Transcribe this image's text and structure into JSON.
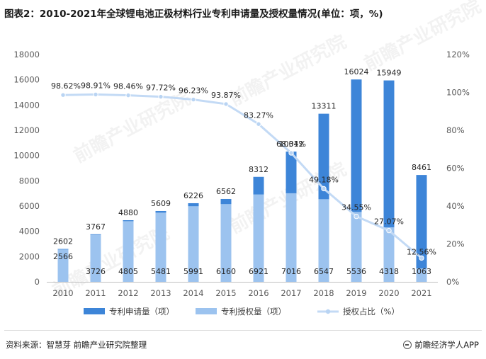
{
  "title": "图表2：2010-2021年全球锂电池正极材料行业专利申请量及授权量情况(单位：项，%)",
  "source": "资料来源：智慧芽 前瞻产业研究院整理",
  "brand": "前瞻经济学人APP",
  "watermark": "前瞻产业研究院",
  "colors": {
    "applications": "#3d85d8",
    "grants": "#9cc3ef",
    "ratio_line": "#c3daf5",
    "ratio_marker": "#b9d4f3"
  },
  "chart_data": {
    "type": "bar",
    "categories": [
      "2010",
      "2011",
      "2012",
      "2013",
      "2014",
      "2015",
      "2016",
      "2017",
      "2018",
      "2019",
      "2020",
      "2021"
    ],
    "series": [
      {
        "name": "专利申请量（项）",
        "type": "bar",
        "axis": "left",
        "values": [
          2602,
          3767,
          4880,
          5609,
          6226,
          6562,
          8312,
          10312,
          13311,
          16024,
          15949,
          8461
        ]
      },
      {
        "name": "专利授权量（项）",
        "type": "bar",
        "axis": "left",
        "values": [
          2566,
          3726,
          4805,
          5481,
          5991,
          6160,
          6921,
          7016,
          6547,
          5536,
          4318,
          1063
        ]
      },
      {
        "name": "授权占比（%）",
        "type": "line",
        "axis": "right",
        "values": [
          98.62,
          98.91,
          98.46,
          97.72,
          96.23,
          93.87,
          83.27,
          68.04,
          49.18,
          34.55,
          27.07,
          12.56
        ],
        "labels": [
          "98.62%",
          "98.91%",
          "98.46%",
          "97.72%",
          "96.23%",
          "93.87%",
          "83.27%",
          "68.04%",
          "49.18%",
          "34.55%",
          "27.07%",
          "12.56%"
        ]
      }
    ],
    "y_left": {
      "min": 0,
      "max": 18000,
      "ticks": [
        "0",
        "2000",
        "4000",
        "6000",
        "8000",
        "10000",
        "12000",
        "14000",
        "16000",
        "18000"
      ]
    },
    "y_right": {
      "min": 0,
      "max": 120,
      "ticks": [
        "0%",
        "20%",
        "40%",
        "60%",
        "80%",
        "100%",
        "120%"
      ]
    },
    "grid": false,
    "legend_position": "bottom"
  }
}
